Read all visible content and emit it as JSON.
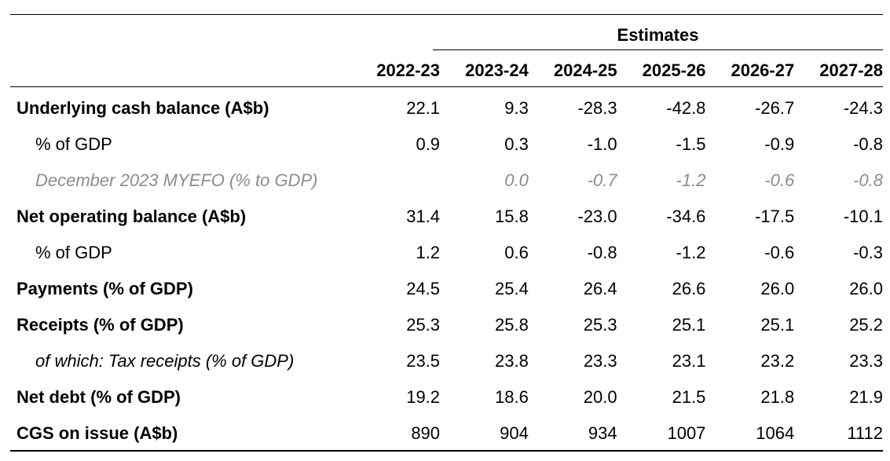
{
  "estimates_label": "Estimates",
  "columns": [
    "2022-23",
    "2023-24",
    "2024-25",
    "2025-26",
    "2026-27",
    "2027-28"
  ],
  "rows": [
    {
      "label": "Underlying cash balance (A$b)",
      "style": "bold",
      "values": [
        "22.1",
        "9.3",
        "-28.3",
        "-42.8",
        "-26.7",
        "-24.3"
      ]
    },
    {
      "label": "% of GDP",
      "style": "indent",
      "values": [
        "0.9",
        "0.3",
        "-1.0",
        "-1.5",
        "-0.9",
        "-0.8"
      ]
    },
    {
      "label": "December 2023 MYEFO (% to GDP)",
      "style": "indent-italic-grey",
      "values": [
        "",
        "0.0",
        "-0.7",
        "-1.2",
        "-0.6",
        "-0.8"
      ]
    },
    {
      "label": "Net operating balance (A$b)",
      "style": "bold",
      "values": [
        "31.4",
        "15.8",
        "-23.0",
        "-34.6",
        "-17.5",
        "-10.1"
      ]
    },
    {
      "label": "% of GDP",
      "style": "indent",
      "values": [
        "1.2",
        "0.6",
        "-0.8",
        "-1.2",
        "-0.6",
        "-0.3"
      ]
    },
    {
      "label": "Payments (% of GDP)",
      "style": "bold",
      "values": [
        "24.5",
        "25.4",
        "26.4",
        "26.6",
        "26.0",
        "26.0"
      ]
    },
    {
      "label": "Receipts (% of GDP)",
      "style": "bold",
      "values": [
        "25.3",
        "25.8",
        "25.3",
        "25.1",
        "25.1",
        "25.2"
      ]
    },
    {
      "label": "of which: Tax receipts (% of GDP)",
      "style": "indent-italic",
      "values": [
        "23.5",
        "23.8",
        "23.3",
        "23.1",
        "23.2",
        "23.3"
      ]
    },
    {
      "label": "Net debt (% of GDP)",
      "style": "bold",
      "values": [
        "19.2",
        "18.6",
        "20.0",
        "21.5",
        "21.8",
        "21.9"
      ]
    },
    {
      "label": "CGS on issue (A$b)",
      "style": "bold",
      "values": [
        "890",
        "904",
        "934",
        "1007",
        "1064",
        "1112"
      ]
    }
  ]
}
